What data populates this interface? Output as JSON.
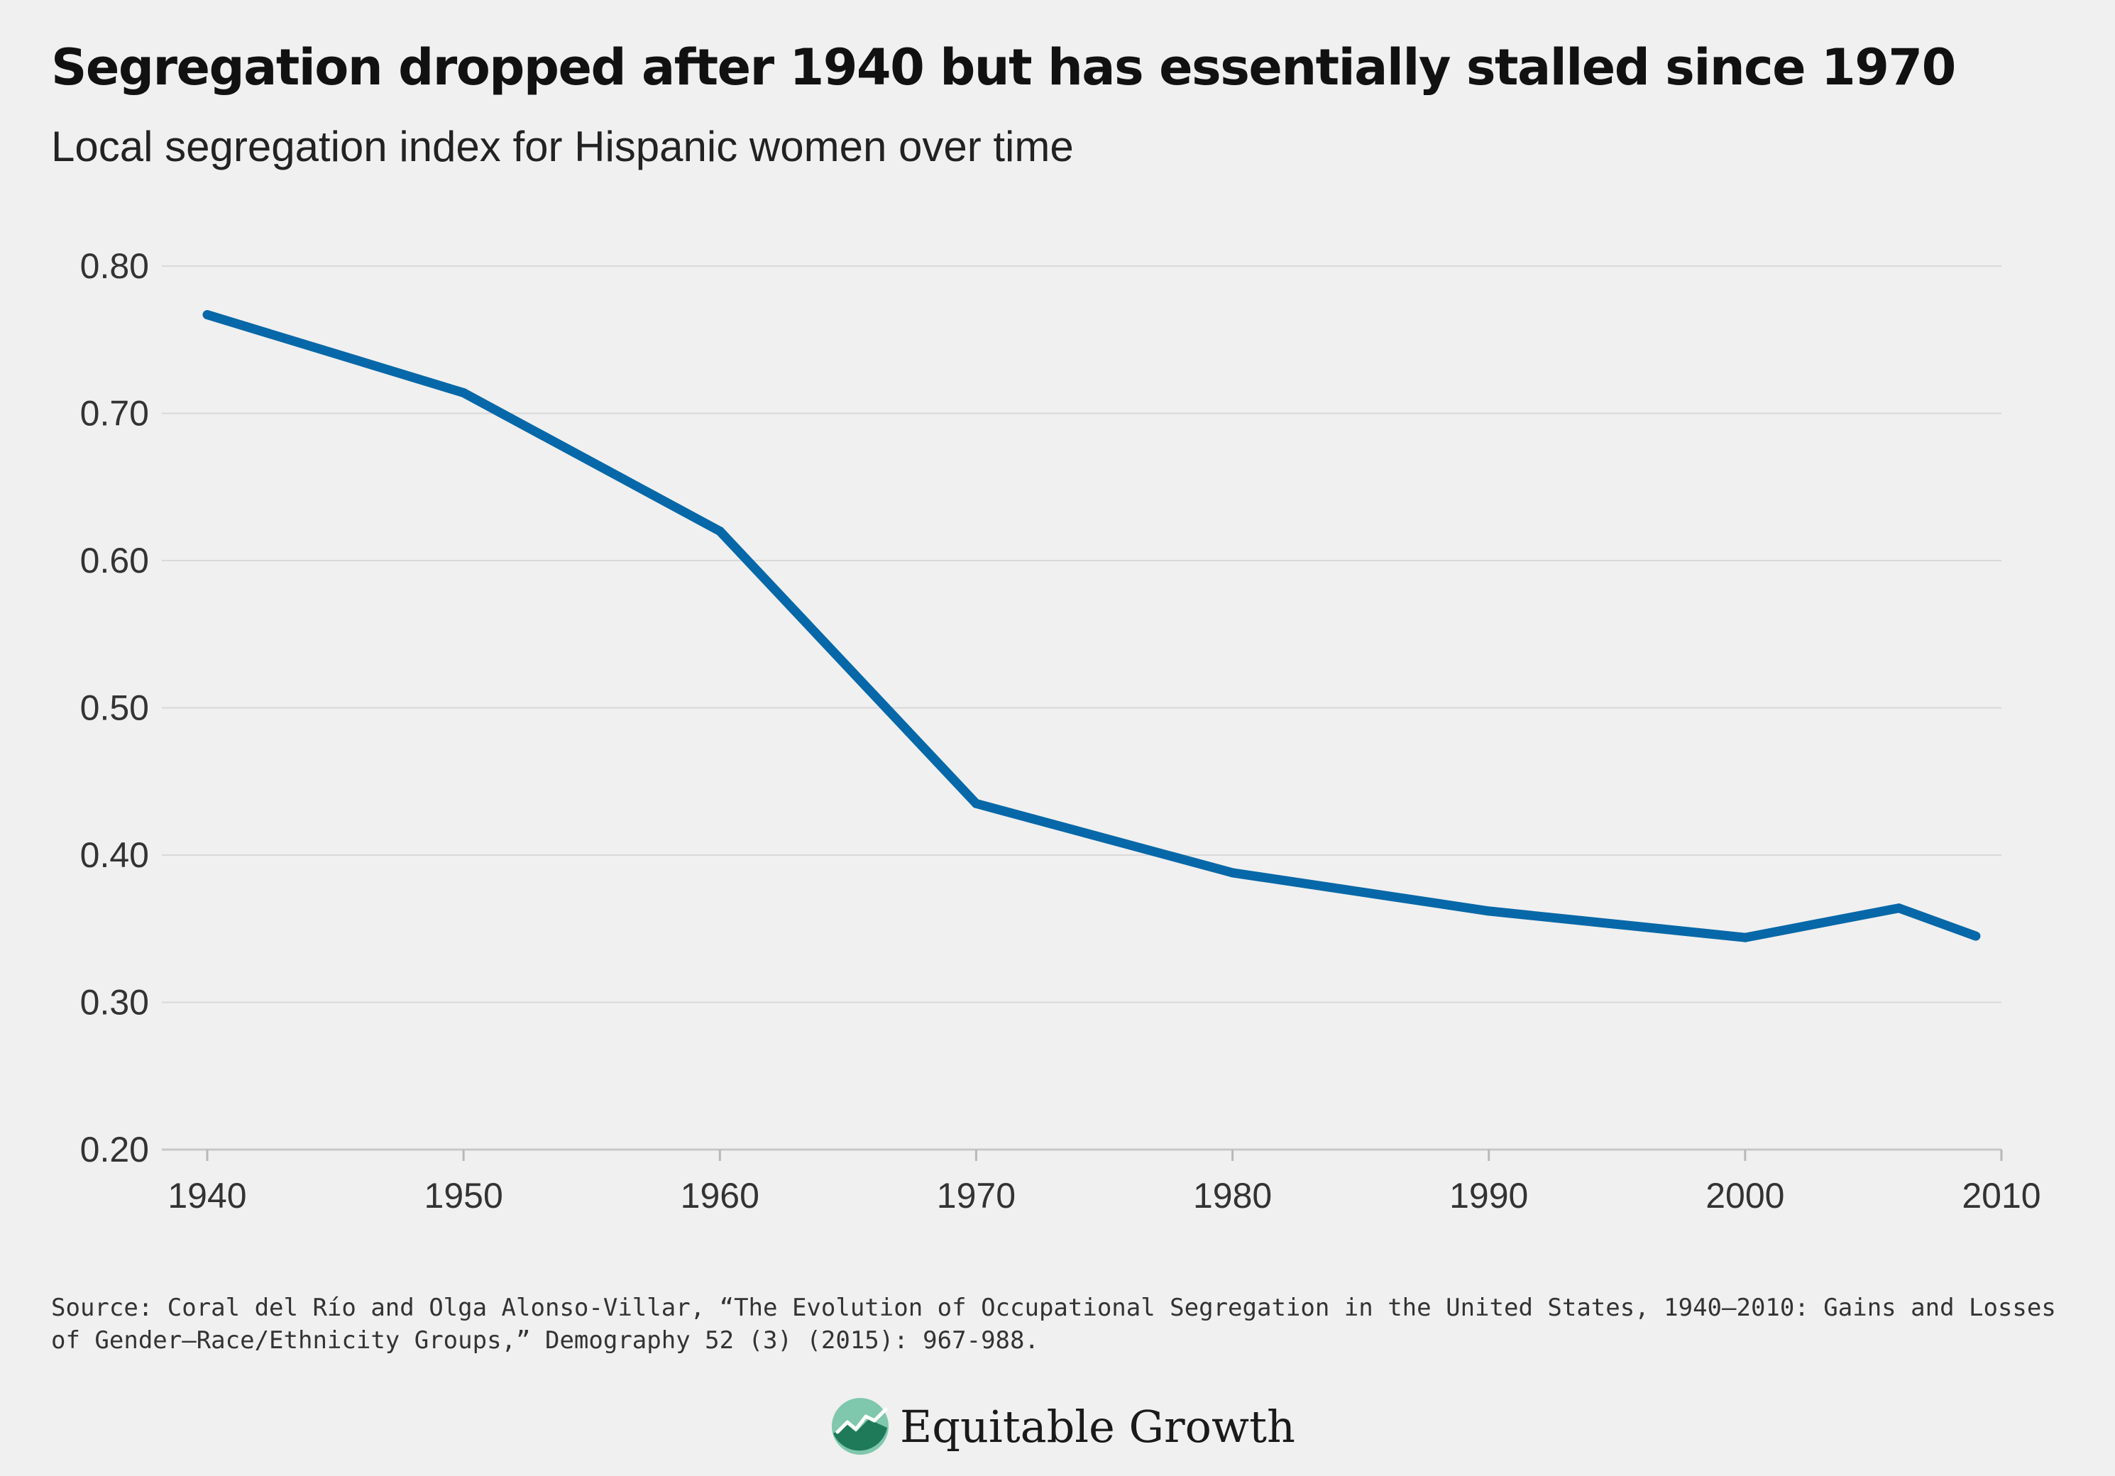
{
  "header": {
    "title": "Segregation dropped after 1940 but has essentially stalled since 1970",
    "subtitle": "Local segregation index for Hispanic women over time"
  },
  "chart_data": {
    "type": "line",
    "title": "Segregation dropped after 1940 but has essentially stalled since 1970",
    "subtitle": "Local segregation index for Hispanic women over time",
    "xlabel": "",
    "ylabel": "",
    "xlim": [
      1940,
      2010
    ],
    "ylim": [
      0.2,
      0.8
    ],
    "x_ticks": [
      "1940",
      "1950",
      "1960",
      "1970",
      "1980",
      "1990",
      "2000",
      "2010"
    ],
    "y_ticks": [
      "0.20",
      "0.30",
      "0.40",
      "0.50",
      "0.60",
      "0.70",
      "0.80"
    ],
    "grid": true,
    "series": [
      {
        "color": "#0668a8",
        "x": [
          1940,
          1950,
          1960,
          1970,
          1980,
          1990,
          2000,
          2006,
          2009
        ],
        "y": [
          0.767,
          0.714,
          0.62,
          0.435,
          0.388,
          0.362,
          0.344,
          0.364,
          0.345
        ]
      }
    ]
  },
  "footer": {
    "source": "Source: Coral del Río and Olga Alonso-Villar, “The Evolution of Occupational Segregation in the United States, 1940–2010: Gains and Losses of Gender–Race/Ethnicity Groups,” Demography 52 (3) (2015): 967-988.",
    "brand": "Equitable Growth"
  },
  "colors": {
    "background": "#f0f0f0",
    "line": "#0668a8",
    "grid": "#d9d9d9",
    "axis_text": "#333333",
    "logo_light": "#7fc7ad",
    "logo_dark": "#1f7a5a"
  }
}
